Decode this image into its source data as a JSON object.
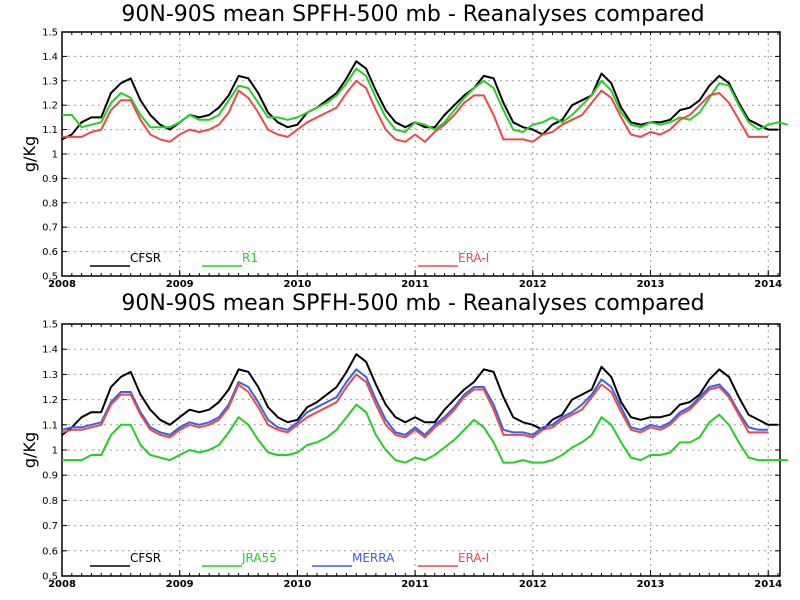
{
  "colors": {
    "CFSR": "#000000",
    "R1": "#22d022",
    "JRA55": "#22d022",
    "MERRA": "#3a5ff0",
    "ERA-I": "#f04848"
  },
  "chart_data": [
    {
      "type": "line",
      "title": "90N-90S mean SPFH-500 mb - Reanalyses compared",
      "ylabel": "g/Kg",
      "xlabel": "",
      "xlim": [
        2008,
        2014.1
      ],
      "ylim": [
        0.5,
        1.5
      ],
      "yticks": [
        "0.5",
        "0.6",
        "0.7",
        "0.8",
        "0.9",
        "1",
        "1.1",
        "1.2",
        "1.3",
        "1.4",
        "1.5"
      ],
      "xticks": [
        "2008",
        "2009",
        "2010",
        "2011",
        "2012",
        "2013",
        "2014"
      ],
      "grid": true,
      "legend_position": "bottom",
      "series": [
        {
          "name": "CFSR",
          "color": "#000000",
          "x0": 2008.0,
          "dx": 0.0833333,
          "values": [
            1.06,
            1.08,
            1.13,
            1.15,
            1.15,
            1.25,
            1.29,
            1.31,
            1.22,
            1.16,
            1.12,
            1.1,
            1.13,
            1.16,
            1.15,
            1.16,
            1.19,
            1.24,
            1.32,
            1.31,
            1.25,
            1.17,
            1.13,
            1.11,
            1.12,
            1.17,
            1.19,
            1.22,
            1.25,
            1.31,
            1.38,
            1.35,
            1.26,
            1.18,
            1.13,
            1.11,
            1.13,
            1.11,
            1.11,
            1.16,
            1.2,
            1.24,
            1.27,
            1.32,
            1.31,
            1.21,
            1.13,
            1.11,
            1.1,
            1.08,
            1.12,
            1.14,
            1.2,
            1.22,
            1.24,
            1.33,
            1.29,
            1.19,
            1.13,
            1.12,
            1.13,
            1.13,
            1.14,
            1.18,
            1.19,
            1.22,
            1.28,
            1.32,
            1.29,
            1.21,
            1.14,
            1.12,
            1.1,
            1.1
          ]
        },
        {
          "name": "R1",
          "color": "#22d022",
          "x0": 2008.0,
          "dx": 0.0833333,
          "values": [
            1.16,
            1.16,
            1.11,
            1.12,
            1.13,
            1.21,
            1.25,
            1.23,
            1.16,
            1.11,
            1.11,
            1.11,
            1.13,
            1.16,
            1.14,
            1.14,
            1.16,
            1.22,
            1.28,
            1.27,
            1.21,
            1.15,
            1.15,
            1.14,
            1.15,
            1.17,
            1.19,
            1.21,
            1.24,
            1.29,
            1.35,
            1.32,
            1.23,
            1.15,
            1.1,
            1.09,
            1.13,
            1.12,
            1.1,
            1.13,
            1.18,
            1.23,
            1.27,
            1.3,
            1.27,
            1.18,
            1.1,
            1.09,
            1.12,
            1.13,
            1.15,
            1.13,
            1.16,
            1.2,
            1.24,
            1.3,
            1.26,
            1.17,
            1.12,
            1.11,
            1.13,
            1.12,
            1.13,
            1.15,
            1.14,
            1.17,
            1.23,
            1.29,
            1.28,
            1.2,
            1.13,
            1.1,
            1.12,
            1.13,
            1.12
          ]
        },
        {
          "name": "ERA-I",
          "color": "#f04848",
          "x0": 2008.0,
          "dx": 0.0833333,
          "values": [
            1.07,
            1.07,
            1.07,
            1.09,
            1.1,
            1.18,
            1.22,
            1.22,
            1.14,
            1.08,
            1.06,
            1.05,
            1.08,
            1.1,
            1.09,
            1.1,
            1.12,
            1.17,
            1.26,
            1.23,
            1.17,
            1.1,
            1.08,
            1.07,
            1.1,
            1.13,
            1.15,
            1.17,
            1.19,
            1.25,
            1.3,
            1.27,
            1.18,
            1.1,
            1.06,
            1.05,
            1.08,
            1.05,
            1.09,
            1.12,
            1.16,
            1.21,
            1.24,
            1.24,
            1.16,
            1.06,
            1.06,
            1.06,
            1.05,
            1.08,
            1.09,
            1.12,
            1.14,
            1.16,
            1.21,
            1.26,
            1.23,
            1.15,
            1.08,
            1.07,
            1.09,
            1.08,
            1.1,
            1.14,
            1.16,
            1.2,
            1.24,
            1.25,
            1.21,
            1.14,
            1.07,
            1.07,
            1.07
          ]
        }
      ]
    },
    {
      "type": "line",
      "title": "90N-90S mean SPFH-500 mb - Reanalyses compared",
      "ylabel": "g/Kg",
      "xlabel": "",
      "xlim": [
        2008,
        2014.1
      ],
      "ylim": [
        0.5,
        1.5
      ],
      "yticks": [
        "0.5",
        "0.6",
        "0.7",
        "0.8",
        "0.9",
        "1",
        "1.1",
        "1.2",
        "1.3",
        "1.4",
        "1.5"
      ],
      "xticks": [
        "2008",
        "2009",
        "2010",
        "2011",
        "2012",
        "2013",
        "2014"
      ],
      "grid": true,
      "legend_position": "bottom",
      "series": [
        {
          "name": "CFSR",
          "color": "#000000",
          "x0": 2008.0,
          "dx": 0.0833333,
          "values": [
            1.06,
            1.09,
            1.13,
            1.15,
            1.15,
            1.25,
            1.29,
            1.31,
            1.22,
            1.16,
            1.12,
            1.1,
            1.13,
            1.16,
            1.15,
            1.16,
            1.19,
            1.24,
            1.32,
            1.31,
            1.25,
            1.17,
            1.13,
            1.11,
            1.12,
            1.17,
            1.19,
            1.22,
            1.25,
            1.31,
            1.38,
            1.35,
            1.26,
            1.18,
            1.13,
            1.11,
            1.13,
            1.11,
            1.11,
            1.16,
            1.2,
            1.24,
            1.27,
            1.32,
            1.31,
            1.21,
            1.13,
            1.11,
            1.1,
            1.08,
            1.12,
            1.14,
            1.2,
            1.22,
            1.24,
            1.33,
            1.29,
            1.19,
            1.13,
            1.12,
            1.13,
            1.13,
            1.14,
            1.18,
            1.19,
            1.22,
            1.28,
            1.32,
            1.29,
            1.21,
            1.14,
            1.12,
            1.1,
            1.1
          ]
        },
        {
          "name": "JRA55",
          "color": "#22d022",
          "x0": 2008.0,
          "dx": 0.0833333,
          "values": [
            0.96,
            0.96,
            0.96,
            0.98,
            0.98,
            1.06,
            1.1,
            1.1,
            1.02,
            0.98,
            0.97,
            0.96,
            0.98,
            1.0,
            0.99,
            1.0,
            1.02,
            1.07,
            1.13,
            1.1,
            1.04,
            0.99,
            0.98,
            0.98,
            0.99,
            1.02,
            1.03,
            1.05,
            1.08,
            1.13,
            1.18,
            1.15,
            1.06,
            1.0,
            0.96,
            0.95,
            0.97,
            0.96,
            0.98,
            1.01,
            1.04,
            1.08,
            1.12,
            1.09,
            1.03,
            0.95,
            0.95,
            0.96,
            0.95,
            0.95,
            0.96,
            0.98,
            1.01,
            1.03,
            1.06,
            1.13,
            1.1,
            1.03,
            0.97,
            0.96,
            0.98,
            0.98,
            0.99,
            1.03,
            1.03,
            1.05,
            1.11,
            1.14,
            1.1,
            1.03,
            0.97,
            0.96,
            0.96,
            0.96,
            0.96
          ]
        },
        {
          "name": "MERRA",
          "color": "#3a5ff0",
          "x0": 2008.0,
          "dx": 0.0833333,
          "values": [
            1.08,
            1.09,
            1.09,
            1.1,
            1.11,
            1.19,
            1.23,
            1.23,
            1.15,
            1.09,
            1.07,
            1.06,
            1.09,
            1.11,
            1.1,
            1.11,
            1.13,
            1.18,
            1.27,
            1.25,
            1.19,
            1.12,
            1.09,
            1.08,
            1.11,
            1.15,
            1.17,
            1.19,
            1.21,
            1.27,
            1.32,
            1.29,
            1.2,
            1.12,
            1.07,
            1.06,
            1.09,
            1.06,
            1.1,
            1.13,
            1.17,
            1.22,
            1.25,
            1.25,
            1.18,
            1.08,
            1.07,
            1.07,
            1.06,
            1.09,
            1.1,
            1.13,
            1.15,
            1.18,
            1.22,
            1.28,
            1.25,
            1.17,
            1.09,
            1.08,
            1.1,
            1.09,
            1.11,
            1.15,
            1.17,
            1.21,
            1.25,
            1.26,
            1.22,
            1.15,
            1.09,
            1.08,
            1.08
          ]
        },
        {
          "name": "ERA-I",
          "color": "#f04848",
          "x0": 2008.0,
          "dx": 0.0833333,
          "values": [
            1.07,
            1.08,
            1.08,
            1.09,
            1.1,
            1.18,
            1.22,
            1.22,
            1.14,
            1.08,
            1.06,
            1.05,
            1.08,
            1.1,
            1.09,
            1.1,
            1.12,
            1.17,
            1.26,
            1.23,
            1.17,
            1.1,
            1.08,
            1.07,
            1.1,
            1.13,
            1.15,
            1.17,
            1.19,
            1.25,
            1.3,
            1.27,
            1.18,
            1.1,
            1.06,
            1.05,
            1.08,
            1.05,
            1.09,
            1.12,
            1.16,
            1.21,
            1.24,
            1.24,
            1.16,
            1.06,
            1.06,
            1.06,
            1.05,
            1.08,
            1.09,
            1.12,
            1.14,
            1.16,
            1.21,
            1.26,
            1.23,
            1.15,
            1.08,
            1.07,
            1.09,
            1.08,
            1.1,
            1.14,
            1.16,
            1.2,
            1.24,
            1.25,
            1.21,
            1.14,
            1.07,
            1.07,
            1.07
          ]
        }
      ]
    }
  ]
}
